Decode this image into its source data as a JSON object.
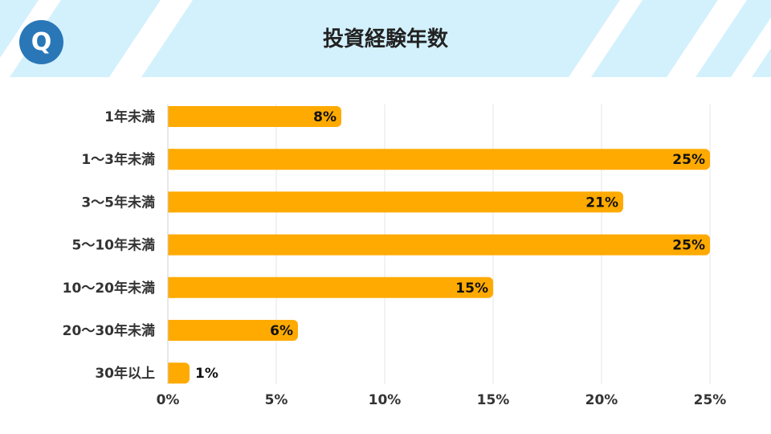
{
  "header": {
    "title": "投資経験年数",
    "logo_letter": "Q"
  },
  "colors": {
    "bar": "#FFAA00",
    "header_bg": "#CFF0FC",
    "logo": "#2A77B8",
    "grid": "#E4E4E4"
  },
  "chart_data": {
    "type": "bar",
    "orientation": "horizontal",
    "title": "投資経験年数",
    "categories": [
      "1年未満",
      "1～3年未満",
      "3～5年未満",
      "5～10年未満",
      "10～20年未満",
      "20～30年未満",
      "30年以上"
    ],
    "values": [
      8,
      25,
      21,
      25,
      15,
      6,
      1
    ],
    "data_labels": [
      "8%",
      "25%",
      "21%",
      "25%",
      "15%",
      "6%",
      "1%"
    ],
    "xlim": [
      0,
      25
    ],
    "x_ticks": [
      0,
      5,
      10,
      15,
      20,
      25
    ],
    "x_tick_labels": [
      "0%",
      "5%",
      "10%",
      "15%",
      "20%",
      "25%"
    ],
    "grid": true,
    "legend": "none"
  }
}
